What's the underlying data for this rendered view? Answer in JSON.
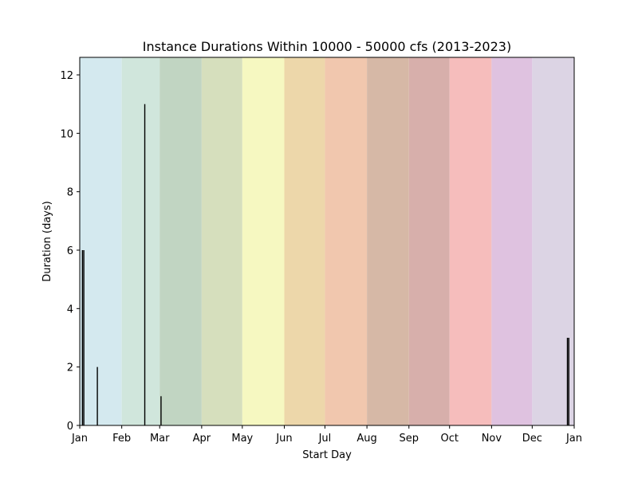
{
  "chart_data": {
    "type": "bar",
    "title": "Instance Durations Within 10000 - 50000 cfs (2013-2023)",
    "xlabel": "Start Day",
    "ylabel": "Duration (days)",
    "xlim": [
      1,
      366
    ],
    "ylim": [
      0,
      12.6
    ],
    "yticks": [
      0,
      2,
      4,
      6,
      8,
      10,
      12
    ],
    "xticks": [
      {
        "label": "Jan",
        "day": 1
      },
      {
        "label": "Feb",
        "day": 32
      },
      {
        "label": "Mar",
        "day": 60
      },
      {
        "label": "Apr",
        "day": 91
      },
      {
        "label": "May",
        "day": 121
      },
      {
        "label": "Jun",
        "day": 152
      },
      {
        "label": "Jul",
        "day": 182
      },
      {
        "label": "Aug",
        "day": 213
      },
      {
        "label": "Sep",
        "day": 244
      },
      {
        "label": "Oct",
        "day": 274
      },
      {
        "label": "Nov",
        "day": 305
      },
      {
        "label": "Dec",
        "day": 335
      },
      {
        "label": "Jan",
        "day": 366
      }
    ],
    "month_bands": [
      {
        "start": 1,
        "end": 32,
        "color": "#d4e9ef"
      },
      {
        "start": 32,
        "end": 60,
        "color": "#d0e6dc"
      },
      {
        "start": 60,
        "end": 91,
        "color": "#c1d5c2"
      },
      {
        "start": 91,
        "end": 121,
        "color": "#d6dfbd"
      },
      {
        "start": 121,
        "end": 152,
        "color": "#f6f8c1"
      },
      {
        "start": 152,
        "end": 182,
        "color": "#edd7aa"
      },
      {
        "start": 182,
        "end": 213,
        "color": "#f1c7ae"
      },
      {
        "start": 213,
        "end": 244,
        "color": "#d6b8a6"
      },
      {
        "start": 244,
        "end": 274,
        "color": "#d7afab"
      },
      {
        "start": 274,
        "end": 305,
        "color": "#f6bdbc"
      },
      {
        "start": 305,
        "end": 335,
        "color": "#dfc2e0"
      },
      {
        "start": 335,
        "end": 366,
        "color": "#dcd4e4"
      }
    ],
    "series": [
      {
        "color": "#000000",
        "points": [
          {
            "x": 3,
            "y": 6
          },
          {
            "x": 4,
            "y": 6
          },
          {
            "x": 14,
            "y": 2
          },
          {
            "x": 49,
            "y": 11
          },
          {
            "x": 61,
            "y": 1
          },
          {
            "x": 361,
            "y": 3
          },
          {
            "x": 362,
            "y": 3
          }
        ]
      }
    ]
  }
}
